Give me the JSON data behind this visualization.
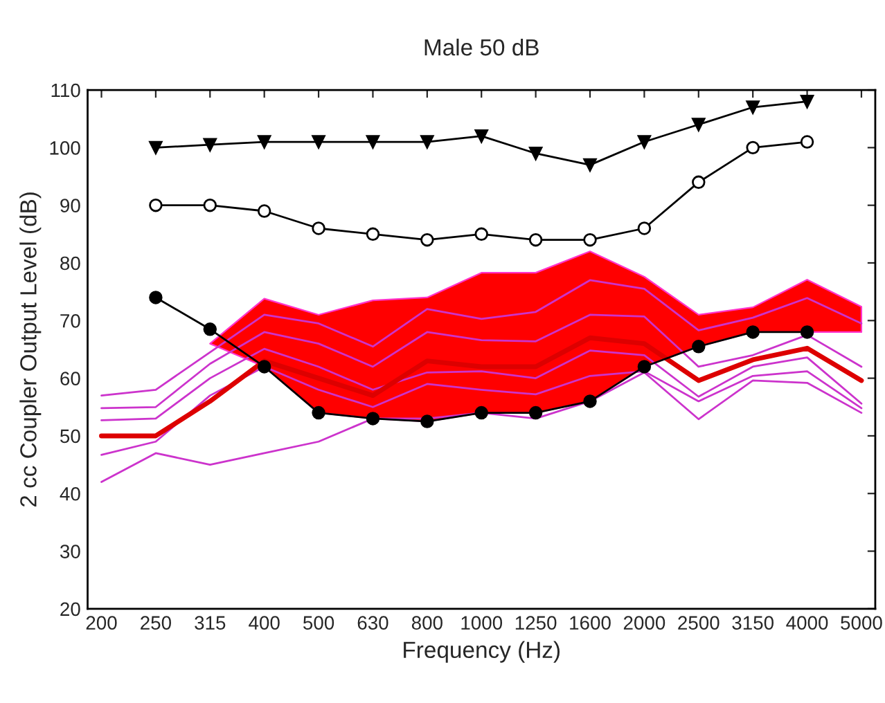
{
  "chart_data": {
    "type": "line",
    "title": "Male 50 dB",
    "xlabel": "Frequency (Hz)",
    "ylabel": "2 cc Coupler Output Level (dB)",
    "categories": [
      "200",
      "250",
      "315",
      "400",
      "500",
      "630",
      "800",
      "1000",
      "1250",
      "1600",
      "2000",
      "2500",
      "3150",
      "4000",
      "5000"
    ],
    "ylim": [
      20,
      110
    ],
    "yticks": [
      20,
      30,
      40,
      50,
      60,
      70,
      80,
      90,
      100,
      110
    ],
    "grid": false,
    "legend": false,
    "series": [
      {
        "color": "#cc33cc",
        "marker": "none",
        "values": [
          57,
          58,
          64.5,
          71,
          69.5,
          65.5,
          72,
          70.3,
          71.5,
          77,
          75.5,
          68.3,
          70.5,
          73.9,
          69.5
        ]
      },
      {
        "color": "#cc33cc",
        "marker": "none",
        "values": [
          54.8,
          55,
          62.5,
          68,
          66,
          62,
          68,
          66.6,
          66.4,
          71,
          70.7,
          62,
          64,
          67.5,
          62
        ]
      },
      {
        "color": "#cc33cc",
        "marker": "none",
        "values": [
          52.7,
          53,
          60,
          65.1,
          62,
          58,
          61,
          61.2,
          60,
          64.8,
          64,
          56.8,
          62,
          63.6,
          55.6
        ]
      },
      {
        "color": "#cc33cc",
        "marker": "none",
        "values": [
          46.7,
          49,
          57,
          62,
          58,
          55,
          59,
          58,
          57.2,
          60.4,
          61.2,
          56,
          60.4,
          61.2,
          54.8
        ]
      },
      {
        "color": "#cc33cc",
        "marker": "none",
        "values": [
          42,
          47,
          45,
          47,
          49,
          53,
          53,
          54,
          53,
          56,
          61,
          52.9,
          59.6,
          59.2,
          54
        ]
      },
      {
        "color": "#dd0000",
        "marker": "none",
        "values": [
          50,
          50,
          56,
          63,
          60,
          57,
          63,
          62,
          62,
          67,
          66,
          59.6,
          63.2,
          65.2,
          59.6
        ],
        "upper": [
          null,
          null,
          66,
          73.8,
          71,
          73.5,
          74,
          78.3,
          78.3,
          82,
          77.6,
          71,
          72.3,
          77.1,
          72.4
        ],
        "lower": [
          null,
          null,
          66,
          62,
          54,
          53,
          52.5,
          54,
          54,
          56,
          62,
          65.5,
          68,
          68,
          68
        ]
      },
      {
        "color": "#000000",
        "marker": "circle",
        "values": [
          null,
          74,
          68.5,
          62,
          54,
          53,
          52.5,
          54,
          54,
          56,
          62,
          65.5,
          68,
          68,
          null
        ]
      },
      {
        "color": "#000000",
        "marker": "circle",
        "values": [
          null,
          90,
          90,
          89,
          86,
          85,
          84,
          85,
          84,
          84,
          86,
          94,
          100,
          101,
          null
        ]
      },
      {
        "color": "#000000",
        "marker": "triangle",
        "values": [
          null,
          100,
          100.5,
          101,
          101,
          101,
          101,
          102,
          99,
          97,
          101,
          104,
          107,
          108,
          null
        ]
      }
    ]
  }
}
